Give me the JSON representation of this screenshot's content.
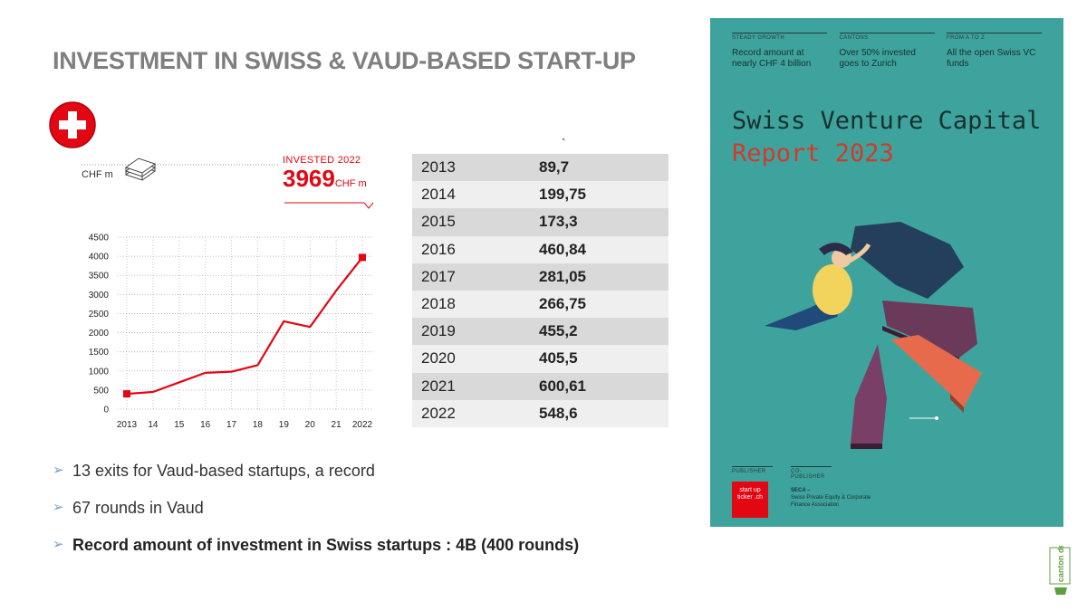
{
  "slide": {
    "title": "INVESTMENT IN SWISS & VAUD-BASED  START-UP"
  },
  "chart": {
    "unit_label": "CHF m",
    "invested_label": "INVESTED 2022",
    "invested_value": "3969",
    "invested_unit": "CHF m"
  },
  "chart_data": {
    "type": "line",
    "title": "",
    "xlabel": "",
    "ylabel": "CHF m",
    "categories": [
      "2013",
      "14",
      "15",
      "16",
      "17",
      "18",
      "19",
      "20",
      "21",
      "2022"
    ],
    "values": [
      400,
      450,
      700,
      950,
      980,
      1150,
      2300,
      2150,
      3100,
      3969
    ],
    "ylim": [
      0,
      4500
    ],
    "yticks": [
      0,
      500,
      1000,
      1500,
      2000,
      2500,
      3000,
      3500,
      4000,
      4500
    ],
    "grid": true,
    "series_color": "#e30613"
  },
  "table": {
    "tick_mark": "`",
    "rows": [
      {
        "year": "2013",
        "value": "89,7"
      },
      {
        "year": "2014",
        "value": "199,75"
      },
      {
        "year": "2015",
        "value": "173,3"
      },
      {
        "year": "2016",
        "value": "460,84"
      },
      {
        "year": "2017",
        "value": "281,05"
      },
      {
        "year": "2018",
        "value": "266,75"
      },
      {
        "year": "2019",
        "value": "455,2"
      },
      {
        "year": "2020",
        "value": "405,5"
      },
      {
        "year": "2021",
        "value": "600,61"
      },
      {
        "year": "2022",
        "value": "548,6"
      }
    ]
  },
  "bullets": [
    {
      "text": "13 exits for Vaud-based startups, a record"
    },
    {
      "text": "67 rounds in Vaud"
    },
    {
      "text": "Record amount of investment in Swiss startups : 4B (400 rounds)"
    }
  ],
  "cover": {
    "col1_head": "STEADY GROWTH",
    "col1_text": "Record amount at nearly CHF 4 billion",
    "col2_head": "CANTONS",
    "col2_text": "Over 50% invested goes to Zurich",
    "col3_head": "FROM A TO Z",
    "col3_text": "All the open Swiss VC funds",
    "title": "Swiss Venture Capital",
    "subtitle": "Report 2023",
    "publisher_head": "PUBLISHER",
    "publisher_logo": "start up ticker .ch",
    "copublisher_head": "CO-PUBLISHER",
    "copublisher_title": "SECA –",
    "copublisher_text": "Swiss Private Equity & Corporate Finance Association"
  },
  "vaud_logo_text": "canton de vaud",
  "colors": {
    "accent": "#e30613",
    "title_gray": "#7f7f7f",
    "cover_bg": "#3fa39d"
  }
}
